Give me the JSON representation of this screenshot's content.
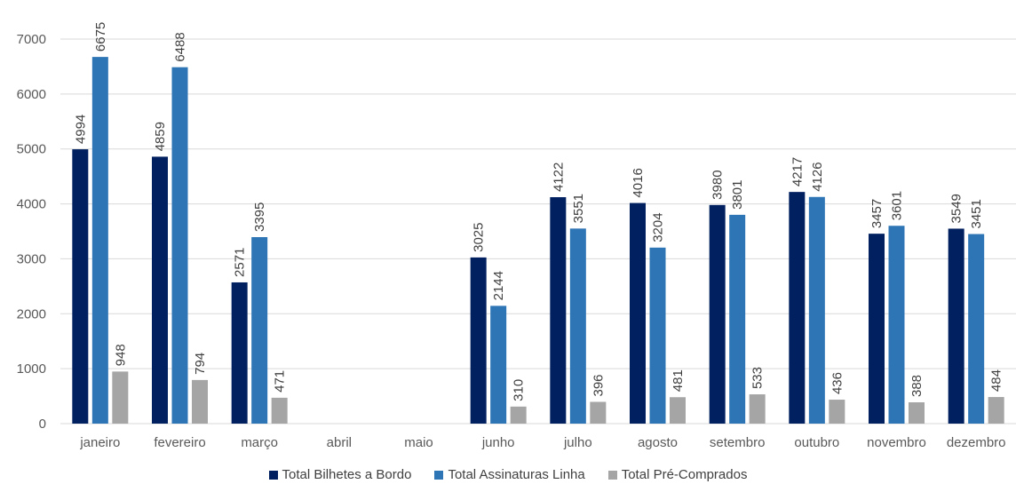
{
  "chart_data": {
    "type": "bar",
    "title": "",
    "xlabel": "",
    "ylabel": "",
    "categories": [
      "janeiro",
      "fevereiro",
      "março",
      "abril",
      "maio",
      "junho",
      "julho",
      "agosto",
      "setembro",
      "outubro",
      "novembro",
      "dezembro"
    ],
    "ylim": [
      0,
      7000
    ],
    "yticks": [
      0,
      1000,
      2000,
      3000,
      4000,
      5000,
      6000,
      7000
    ],
    "grid": true,
    "legend_position": "bottom",
    "series": [
      {
        "name": "Total Bilhetes a Bordo",
        "color": "#002060",
        "values": [
          4994,
          4859,
          2571,
          null,
          null,
          3025,
          4122,
          4016,
          3980,
          4217,
          3457,
          3549
        ]
      },
      {
        "name": "Total Assinaturas Linha",
        "color": "#2E75B6",
        "values": [
          6675,
          6488,
          3395,
          null,
          null,
          2144,
          3551,
          3204,
          3801,
          4126,
          3601,
          3451
        ]
      },
      {
        "name": "Total Pré-Comprados",
        "color": "#A5A5A5",
        "values": [
          948,
          794,
          471,
          null,
          null,
          310,
          396,
          481,
          533,
          436,
          388,
          484
        ]
      }
    ]
  }
}
